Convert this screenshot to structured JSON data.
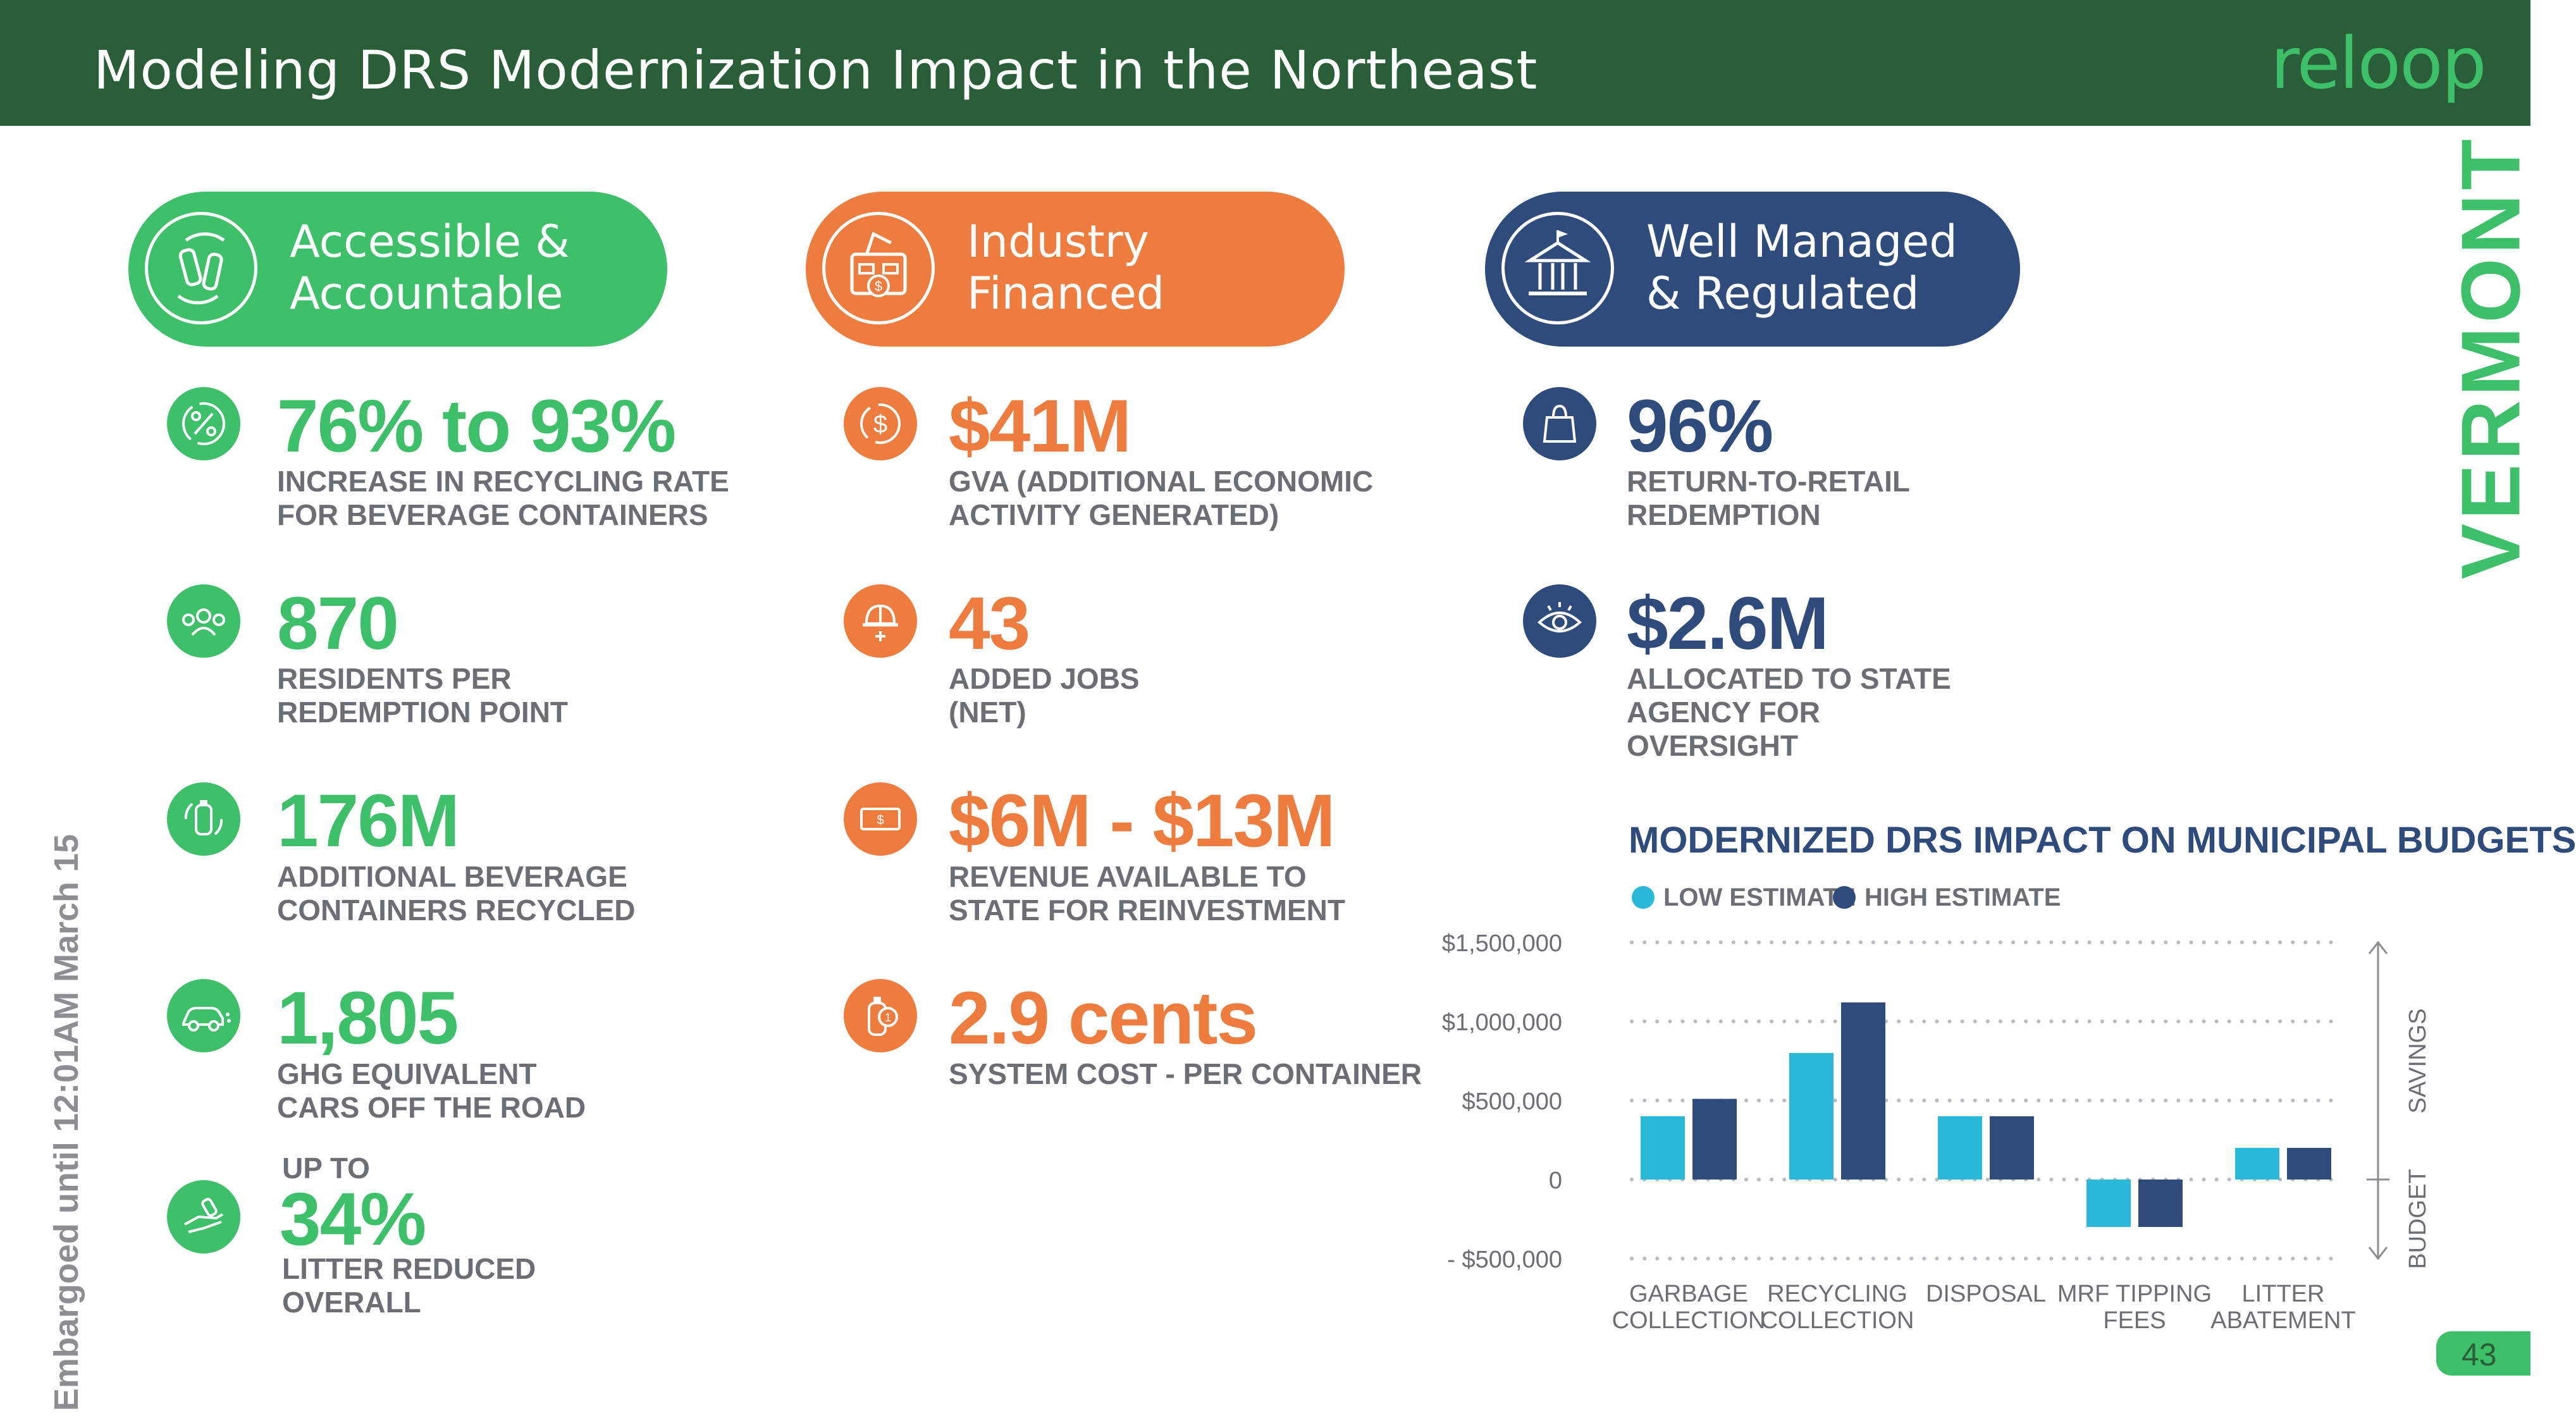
{
  "title": "Modeling DRS Modernization Impact in the Northeast",
  "logo": "reloop",
  "state": "VERMONT",
  "embargo": "Embargoed until 12:01AM March 15",
  "page_number": "43",
  "colors": {
    "header": "#2a5e38",
    "green": "#3ec06a",
    "orange": "#ee7c3f",
    "navy": "#2e4b7c",
    "low_estimate": "#2cb8d8",
    "high_estimate": "#2e4b7c"
  },
  "columns": [
    {
      "pill": {
        "line1": "Accessible &",
        "line2": "Accountable",
        "icon": "recycle-bottles-icon"
      },
      "stats": [
        {
          "icon": "percent-arrows-icon",
          "value": "76% to 93%",
          "line1": "INCREASE IN RECYCLING RATE",
          "line2": "FOR BEVERAGE CONTAINERS"
        },
        {
          "icon": "people-icon",
          "value": "870",
          "line1": "RESIDENTS PER",
          "line2": "REDEMPTION POINT"
        },
        {
          "icon": "bottle-recycle-icon",
          "value": "176M",
          "line1": "ADDITIONAL BEVERAGE",
          "line2": "CONTAINERS RECYCLED"
        },
        {
          "icon": "car-icon",
          "value": "1,805",
          "line1": "GHG EQUIVALENT",
          "line2": "CARS OFF THE ROAD"
        },
        {
          "icon": "litter-hand-icon",
          "prefix": "UP TO",
          "value": "34%",
          "line1": "LITTER REDUCED",
          "line2": "OVERALL"
        }
      ]
    },
    {
      "pill": {
        "line1": "Industry",
        "line2": "Financed",
        "icon": "factory-money-icon"
      },
      "stats": [
        {
          "icon": "dollar-cycle-icon",
          "value": "$41M",
          "line1": "GVA (ADDITIONAL ECONOMIC",
          "line2": "ACTIVITY GENERATED)"
        },
        {
          "icon": "hardhat-worker-icon",
          "value": "43",
          "line1": "ADDED JOBS",
          "line2": "(NET)"
        },
        {
          "icon": "banknote-icon",
          "value": "$6M - $13M",
          "line1": "REVENUE AVAILABLE TO",
          "line2": "STATE FOR REINVESTMENT"
        },
        {
          "icon": "bottle-coin-icon",
          "value": "2.9 cents",
          "line1": "SYSTEM COST - PER CONTAINER"
        }
      ]
    },
    {
      "pill": {
        "line1": "Well Managed",
        "line2": "& Regulated",
        "icon": "government-building-icon"
      },
      "stats": [
        {
          "icon": "shopping-bag-icon",
          "value": "96%",
          "line1": "RETURN-TO-RETAIL",
          "line2": "REDEMPTION"
        },
        {
          "icon": "eye-icon",
          "value": "$2.6M",
          "line1": "ALLOCATED TO STATE",
          "line2": "AGENCY FOR",
          "line3": "OVERSIGHT"
        }
      ]
    }
  ],
  "chart_data": {
    "type": "bar",
    "title": "MODERNIZED DRS IMPACT ON MUNICIPAL BUDGETS",
    "categories": [
      [
        "GARBAGE",
        "COLLECTION"
      ],
      [
        "RECYCLING",
        "COLLECTION"
      ],
      [
        "DISPOSAL"
      ],
      [
        "MRF TIPPING",
        "FEES"
      ],
      [
        "LITTER",
        "ABATEMENT"
      ]
    ],
    "series": [
      {
        "name": "LOW ESTIMATE",
        "values": [
          400000,
          800000,
          400000,
          -300000,
          200000
        ]
      },
      {
        "name": "HIGH ESTIMATE",
        "values": [
          510000,
          1120000,
          400000,
          -300000,
          200000
        ]
      }
    ],
    "ylim": [
      -500000,
      1500000
    ],
    "yticks": [
      {
        "value": 1500000,
        "label": "$1,500,000"
      },
      {
        "value": 1000000,
        "label": "$1,000,000"
      },
      {
        "value": 500000,
        "label": "$500,000"
      },
      {
        "value": 0,
        "label": "0"
      },
      {
        "value": -500000,
        "label": "- $500,000"
      }
    ],
    "right_annotations": {
      "upper": "SAVINGS",
      "lower": "BUDGET"
    },
    "grid": "dotted",
    "legend": "top-left"
  }
}
